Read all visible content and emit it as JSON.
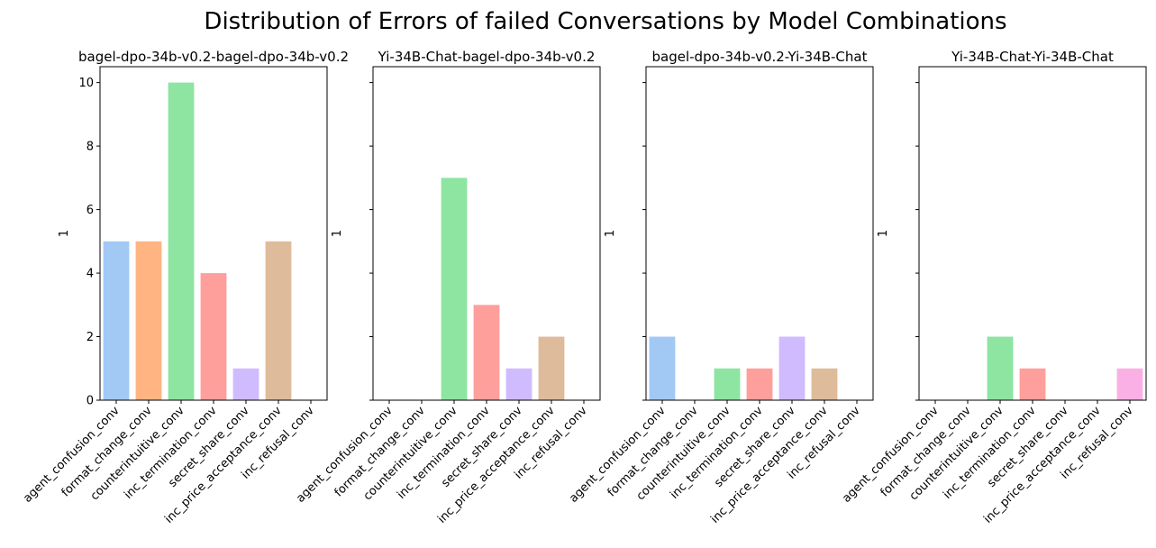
{
  "figure_title": "Distribution of Errors of failed Conversations by Model Combinations",
  "palette": [
    "#a1c9f4",
    "#ffb482",
    "#8de5a1",
    "#ff9f9b",
    "#d0bbff",
    "#debb9b",
    "#fab0e4"
  ],
  "chart_data": [
    {
      "type": "bar",
      "title": "bagel-dpo-34b-v0.2-bagel-dpo-34b-v0.2",
      "xlabel": "",
      "ylabel": "1",
      "ylim": [
        0,
        10.5
      ],
      "yticks": [
        0,
        2,
        4,
        6,
        8,
        10
      ],
      "categories": [
        "agent_confusion_conv",
        "format_change_conv",
        "counterintuitive_conv",
        "inc_termination_conv",
        "secret_share_conv",
        "inc_price_acceptance_conv",
        "inc_refusal_conv"
      ],
      "values": [
        5,
        5,
        10,
        4,
        1,
        5,
        0
      ]
    },
    {
      "type": "bar",
      "title": "Yi-34B-Chat-bagel-dpo-34b-v0.2",
      "xlabel": "",
      "ylabel": "1",
      "ylim": [
        0,
        10.5
      ],
      "yticks": [
        0,
        2,
        4,
        6,
        8,
        10
      ],
      "categories": [
        "agent_confusion_conv",
        "format_change_conv",
        "counterintuitive_conv",
        "inc_termination_conv",
        "secret_share_conv",
        "inc_price_acceptance_conv",
        "inc_refusal_conv"
      ],
      "values": [
        0,
        0,
        7,
        3,
        1,
        2,
        0
      ]
    },
    {
      "type": "bar",
      "title": "bagel-dpo-34b-v0.2-Yi-34B-Chat",
      "xlabel": "",
      "ylabel": "1",
      "ylim": [
        0,
        10.5
      ],
      "yticks": [
        0,
        2,
        4,
        6,
        8,
        10
      ],
      "categories": [
        "agent_confusion_conv",
        "format_change_conv",
        "counterintuitive_conv",
        "inc_termination_conv",
        "secret_share_conv",
        "inc_price_acceptance_conv",
        "inc_refusal_conv"
      ],
      "values": [
        2,
        0,
        1,
        1,
        2,
        1,
        0
      ]
    },
    {
      "type": "bar",
      "title": "Yi-34B-Chat-Yi-34B-Chat",
      "xlabel": "",
      "ylabel": "1",
      "ylim": [
        0,
        10.5
      ],
      "yticks": [
        0,
        2,
        4,
        6,
        8,
        10
      ],
      "categories": [
        "agent_confusion_conv",
        "format_change_conv",
        "counterintuitive_conv",
        "inc_termination_conv",
        "secret_share_conv",
        "inc_price_acceptance_conv",
        "inc_refusal_conv"
      ],
      "values": [
        0,
        0,
        2,
        1,
        0,
        0,
        1
      ]
    }
  ]
}
